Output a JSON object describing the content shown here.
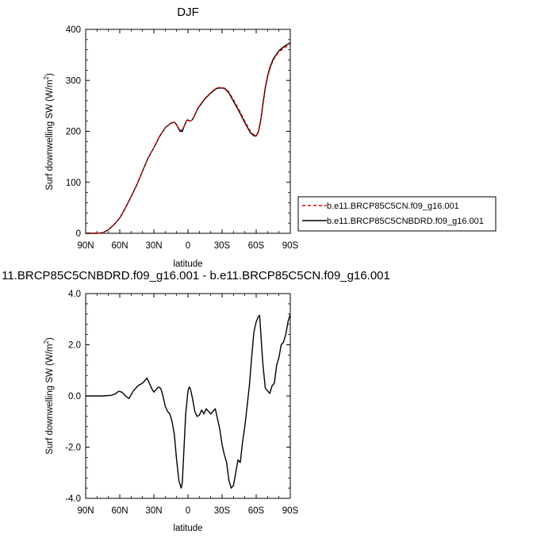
{
  "chart_data": [
    {
      "type": "line",
      "title": "DJF",
      "xlabel": "latitude",
      "ylabel": "Surf downwelling SW (W/m",
      "ylabel_sup": "2",
      "ylabel_close": ")",
      "xlim": [
        90,
        -90
      ],
      "ylim": [
        0,
        400
      ],
      "x_ticks": [
        90,
        60,
        30,
        0,
        -30,
        -60,
        -90
      ],
      "x_tick_labels": [
        "90N",
        "60N",
        "30N",
        "0",
        "30S",
        "60S",
        "90S"
      ],
      "y_ticks": [
        0,
        100,
        200,
        300,
        400
      ],
      "y_tick_labels": [
        "0",
        "100",
        "200",
        "300",
        "400"
      ],
      "legend_position": "right",
      "series": [
        {
          "name": "b.e11.BRCP85C5CN.f09_g16.001",
          "color": "#e00000",
          "dash": "dashed",
          "x": [
            90,
            80,
            75,
            70,
            65,
            60,
            55,
            50,
            45,
            40,
            35,
            30,
            25,
            20,
            15,
            12,
            10,
            7,
            5,
            3,
            1,
            0,
            -2,
            -4,
            -6,
            -8,
            -10,
            -15,
            -20,
            -25,
            -28,
            -30,
            -33,
            -36,
            -40,
            -45,
            -50,
            -55,
            -58,
            -60,
            -62,
            -64,
            -66,
            -68,
            -70,
            -72,
            -75,
            -80,
            -85,
            -90
          ],
          "y": [
            0,
            0,
            1,
            7,
            17,
            30,
            50,
            72,
            95,
            122,
            148,
            168,
            190,
            207,
            216,
            218,
            213,
            202,
            203,
            212,
            222,
            222,
            220,
            223,
            232,
            242,
            250,
            265,
            276,
            285,
            286,
            286,
            284,
            277,
            262,
            242,
            220,
            200,
            193,
            191,
            198,
            220,
            252,
            283,
            306,
            322,
            340,
            356,
            364,
            371
          ]
        },
        {
          "name": "b.e11.BRCP85C5CNBDRD.f09_g16.001",
          "color": "#000000",
          "dash": "solid",
          "x": [
            90,
            80,
            75,
            70,
            65,
            60,
            55,
            50,
            45,
            40,
            35,
            30,
            25,
            20,
            15,
            12,
            10,
            7,
            5,
            3,
            1,
            0,
            -2,
            -4,
            -6,
            -8,
            -10,
            -15,
            -20,
            -25,
            -28,
            -30,
            -33,
            -36,
            -40,
            -45,
            -50,
            -55,
            -58,
            -60,
            -62,
            -64,
            -66,
            -68,
            -70,
            -72,
            -75,
            -80,
            -85,
            -90
          ],
          "y": [
            0,
            0,
            1,
            7,
            17,
            30,
            50,
            72,
            95,
            122,
            148,
            168,
            190,
            207,
            216,
            218,
            213,
            200,
            200,
            212,
            222,
            222,
            220,
            223,
            232,
            242,
            249,
            264,
            275,
            284,
            285,
            285,
            283,
            275,
            259,
            239,
            217,
            197,
            191,
            191,
            200,
            222,
            255,
            286,
            308,
            325,
            342,
            358,
            367,
            374
          ]
        }
      ]
    },
    {
      "type": "line",
      "title": "11.BRCP85C5CNBDRD.f09_g16.001 - b.e11.BRCP85C5CN.f09_g16.001",
      "xlabel": "latitude",
      "ylabel": "Surf downwelling SW (W/m",
      "ylabel_sup": "2",
      "ylabel_close": ")",
      "xlim": [
        90,
        -90
      ],
      "ylim": [
        -4,
        4
      ],
      "x_ticks": [
        90,
        60,
        30,
        0,
        -30,
        -60,
        -90
      ],
      "x_tick_labels": [
        "90N",
        "60N",
        "30N",
        "0",
        "30S",
        "60S",
        "90S"
      ],
      "y_ticks": [
        -4,
        -2,
        0,
        2,
        4
      ],
      "y_tick_labels": [
        "-4.0",
        "-2.0",
        "0.0",
        "2.0",
        "4.0"
      ],
      "series": [
        {
          "color": "#000000",
          "dash": "solid",
          "x": [
            90,
            75,
            68,
            64,
            61,
            58,
            55,
            52,
            48,
            44,
            40,
            36,
            34,
            32,
            30,
            28,
            26,
            24,
            22,
            20,
            18,
            16,
            14,
            12,
            10,
            8,
            6,
            5,
            4,
            3,
            2,
            0,
            -1,
            -2,
            -4,
            -6,
            -8,
            -10,
            -12,
            -14,
            -16,
            -18,
            -20,
            -22,
            -24,
            -26,
            -28,
            -30,
            -32,
            -34,
            -36,
            -38,
            -40,
            -42,
            -44,
            -46,
            -48,
            -50,
            -52,
            -54,
            -56,
            -58,
            -60,
            -62,
            -63,
            -64,
            -65,
            -66,
            -68,
            -70,
            -72,
            -74,
            -76,
            -78,
            -80,
            -82,
            -84,
            -86,
            -88,
            -90
          ],
          "y": [
            0,
            0,
            0.02,
            0.08,
            0.18,
            0.15,
            0,
            -0.1,
            0.2,
            0.4,
            0.5,
            0.7,
            0.5,
            0.3,
            0.15,
            0.25,
            0.35,
            0.3,
            0,
            -0.4,
            -0.6,
            -0.7,
            -1.0,
            -1.5,
            -2.5,
            -3.3,
            -3.6,
            -3.4,
            -2.5,
            -1.6,
            -0.7,
            0.2,
            0.35,
            0.3,
            -0.1,
            -0.6,
            -0.8,
            -0.75,
            -0.55,
            -0.7,
            -0.5,
            -0.6,
            -0.7,
            -0.6,
            -0.5,
            -0.9,
            -1.3,
            -1.9,
            -2.3,
            -2.6,
            -3.3,
            -3.6,
            -3.5,
            -3.0,
            -2.5,
            -2.6,
            -1.8,
            -1.2,
            -0.4,
            0.4,
            1.5,
            2.5,
            2.9,
            3.1,
            3.15,
            2.5,
            1.8,
            1.2,
            0.3,
            0.2,
            0.1,
            0.4,
            0.5,
            1.2,
            1.5,
            2.0,
            2.1,
            2.4,
            2.9,
            3.2
          ]
        }
      ]
    }
  ]
}
